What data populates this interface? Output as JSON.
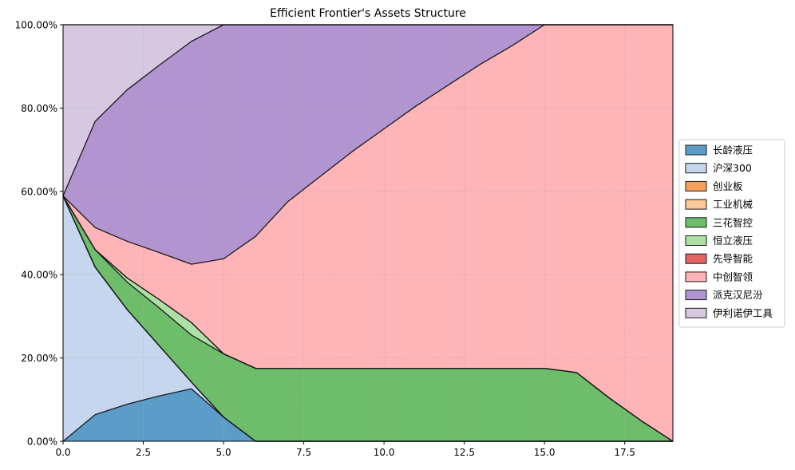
{
  "chart_data": {
    "type": "area",
    "stacked": true,
    "title": "Efficient Frontier's Assets Structure",
    "xlabel": "",
    "ylabel": "",
    "xlim": [
      0,
      19
    ],
    "ylim": [
      0,
      1
    ],
    "x_ticks": [
      0.0,
      2.5,
      5.0,
      7.5,
      10.0,
      12.5,
      15.0,
      17.5
    ],
    "x_tick_labels": [
      "0.0",
      "2.5",
      "5.0",
      "7.5",
      "10.0",
      "12.5",
      "15.0",
      "17.5"
    ],
    "y_ticks": [
      0,
      0.2,
      0.4,
      0.6,
      0.8,
      1.0
    ],
    "y_tick_labels": [
      "0.00%",
      "20.00%",
      "40.00%",
      "60.00%",
      "80.00%",
      "100.00%"
    ],
    "grid": true,
    "legend_position": "right",
    "x": [
      0,
      1,
      2,
      3,
      4,
      5,
      6,
      7,
      8,
      9,
      10,
      11,
      12,
      13,
      14,
      15,
      16,
      17,
      18,
      19
    ],
    "series": [
      {
        "name": "长龄液压",
        "color": "#5c9cc9",
        "values": [
          0,
          0.064,
          0.089,
          0.109,
          0.126,
          0.058,
          0,
          0,
          0,
          0,
          0,
          0,
          0,
          0,
          0,
          0,
          0,
          0,
          0,
          0
        ]
      },
      {
        "name": "沪深300",
        "color": "#c5d6ee",
        "values": [
          0.589,
          0.354,
          0.227,
          0.12,
          0.016,
          0,
          0,
          0,
          0,
          0,
          0,
          0,
          0,
          0,
          0,
          0,
          0,
          0,
          0,
          0
        ]
      },
      {
        "name": "创业板",
        "color": "#f8a259",
        "values": [
          0,
          0,
          0,
          0,
          0,
          0,
          0,
          0,
          0,
          0,
          0,
          0,
          0,
          0,
          0,
          0,
          0,
          0,
          0,
          0
        ]
      },
      {
        "name": "工业机械",
        "color": "#fcc999",
        "values": [
          0,
          0,
          0,
          0,
          0,
          0,
          0,
          0,
          0,
          0,
          0,
          0,
          0,
          0,
          0,
          0,
          0,
          0,
          0,
          0
        ]
      },
      {
        "name": "三花智控",
        "color": "#6dbd6a",
        "values": [
          0,
          0.042,
          0.066,
          0.091,
          0.113,
          0.152,
          0.175,
          0.175,
          0.175,
          0.175,
          0.175,
          0.175,
          0.175,
          0.175,
          0.175,
          0.175,
          0.165,
          0.105,
          0.05,
          0
        ]
      },
      {
        "name": "恒立液压",
        "color": "#aee0a5",
        "values": [
          0,
          0,
          0.01,
          0.02,
          0.03,
          0,
          0,
          0,
          0,
          0,
          0,
          0,
          0,
          0,
          0,
          0,
          0,
          0,
          0,
          0
        ]
      },
      {
        "name": "先导智能",
        "color": "#e26463",
        "values": [
          0,
          0,
          0,
          0,
          0,
          0,
          0,
          0,
          0,
          0,
          0,
          0,
          0,
          0,
          0,
          0,
          0,
          0,
          0,
          0
        ]
      },
      {
        "name": "中创智领",
        "color": "#ffb4b7",
        "values": [
          0,
          0.053,
          0.088,
          0.113,
          0.14,
          0.228,
          0.317,
          0.4,
          0.46,
          0.52,
          0.575,
          0.63,
          0.68,
          0.73,
          0.775,
          0.825,
          0.835,
          0.895,
          0.95,
          1.0
        ]
      },
      {
        "name": "派克汉尼汾",
        "color": "#b194d0",
        "values": [
          0,
          0.255,
          0.364,
          0.45,
          0.535,
          0.562,
          0.508,
          0.425,
          0.365,
          0.305,
          0.25,
          0.195,
          0.145,
          0.095,
          0.05,
          0,
          0,
          0,
          0,
          0
        ]
      },
      {
        "name": "伊利诺伊工具",
        "color": "#d6c8e0",
        "values": [
          0.411,
          0.232,
          0.156,
          0.097,
          0.04,
          0,
          0,
          0,
          0,
          0,
          0,
          0,
          0,
          0,
          0,
          0,
          0,
          0,
          0,
          0
        ]
      }
    ]
  }
}
